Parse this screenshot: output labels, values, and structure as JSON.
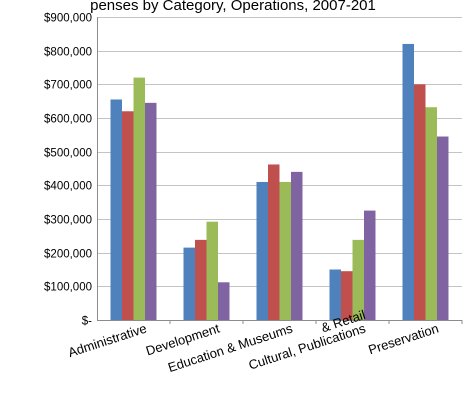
{
  "chart_data": {
    "type": "bar",
    "title": "penses by Category, Operations, 2007-201",
    "xlabel": "",
    "ylabel": "",
    "categories": [
      "Administrative",
      "Development",
      "Education & Museums",
      "Cultural, Publications & Retail",
      "Preservation"
    ],
    "category_label_lines": [
      [
        "Administrative"
      ],
      [
        "Development"
      ],
      [
        "Education & Museums"
      ],
      [
        "Cultural, Publications",
        "& Retail"
      ],
      [
        "Preservation"
      ]
    ],
    "series": [
      {
        "values": [
          655000,
          215000,
          410000,
          150000,
          820000
        ]
      },
      {
        "values": [
          620000,
          238000,
          462000,
          145000,
          700000
        ]
      },
      {
        "values": [
          720000,
          292000,
          410000,
          238000,
          632000
        ]
      },
      {
        "values": [
          645000,
          112000,
          440000,
          325000,
          545000
        ]
      }
    ],
    "series_colors": [
      "#4f81bd",
      "#c0504d",
      "#9bbb59",
      "#8064a2"
    ],
    "ylim": [
      0,
      900000
    ],
    "yticks": [
      0,
      100000,
      200000,
      300000,
      400000,
      500000,
      600000,
      700000,
      800000,
      900000
    ],
    "ytick_labels": [
      "$-",
      "$100,000",
      "$200,000",
      "$300,000",
      "$400,000",
      "$500,000",
      "$600,000",
      "$700,000",
      "$800,000",
      "$900,000"
    ],
    "grid": true,
    "legend": "none"
  }
}
